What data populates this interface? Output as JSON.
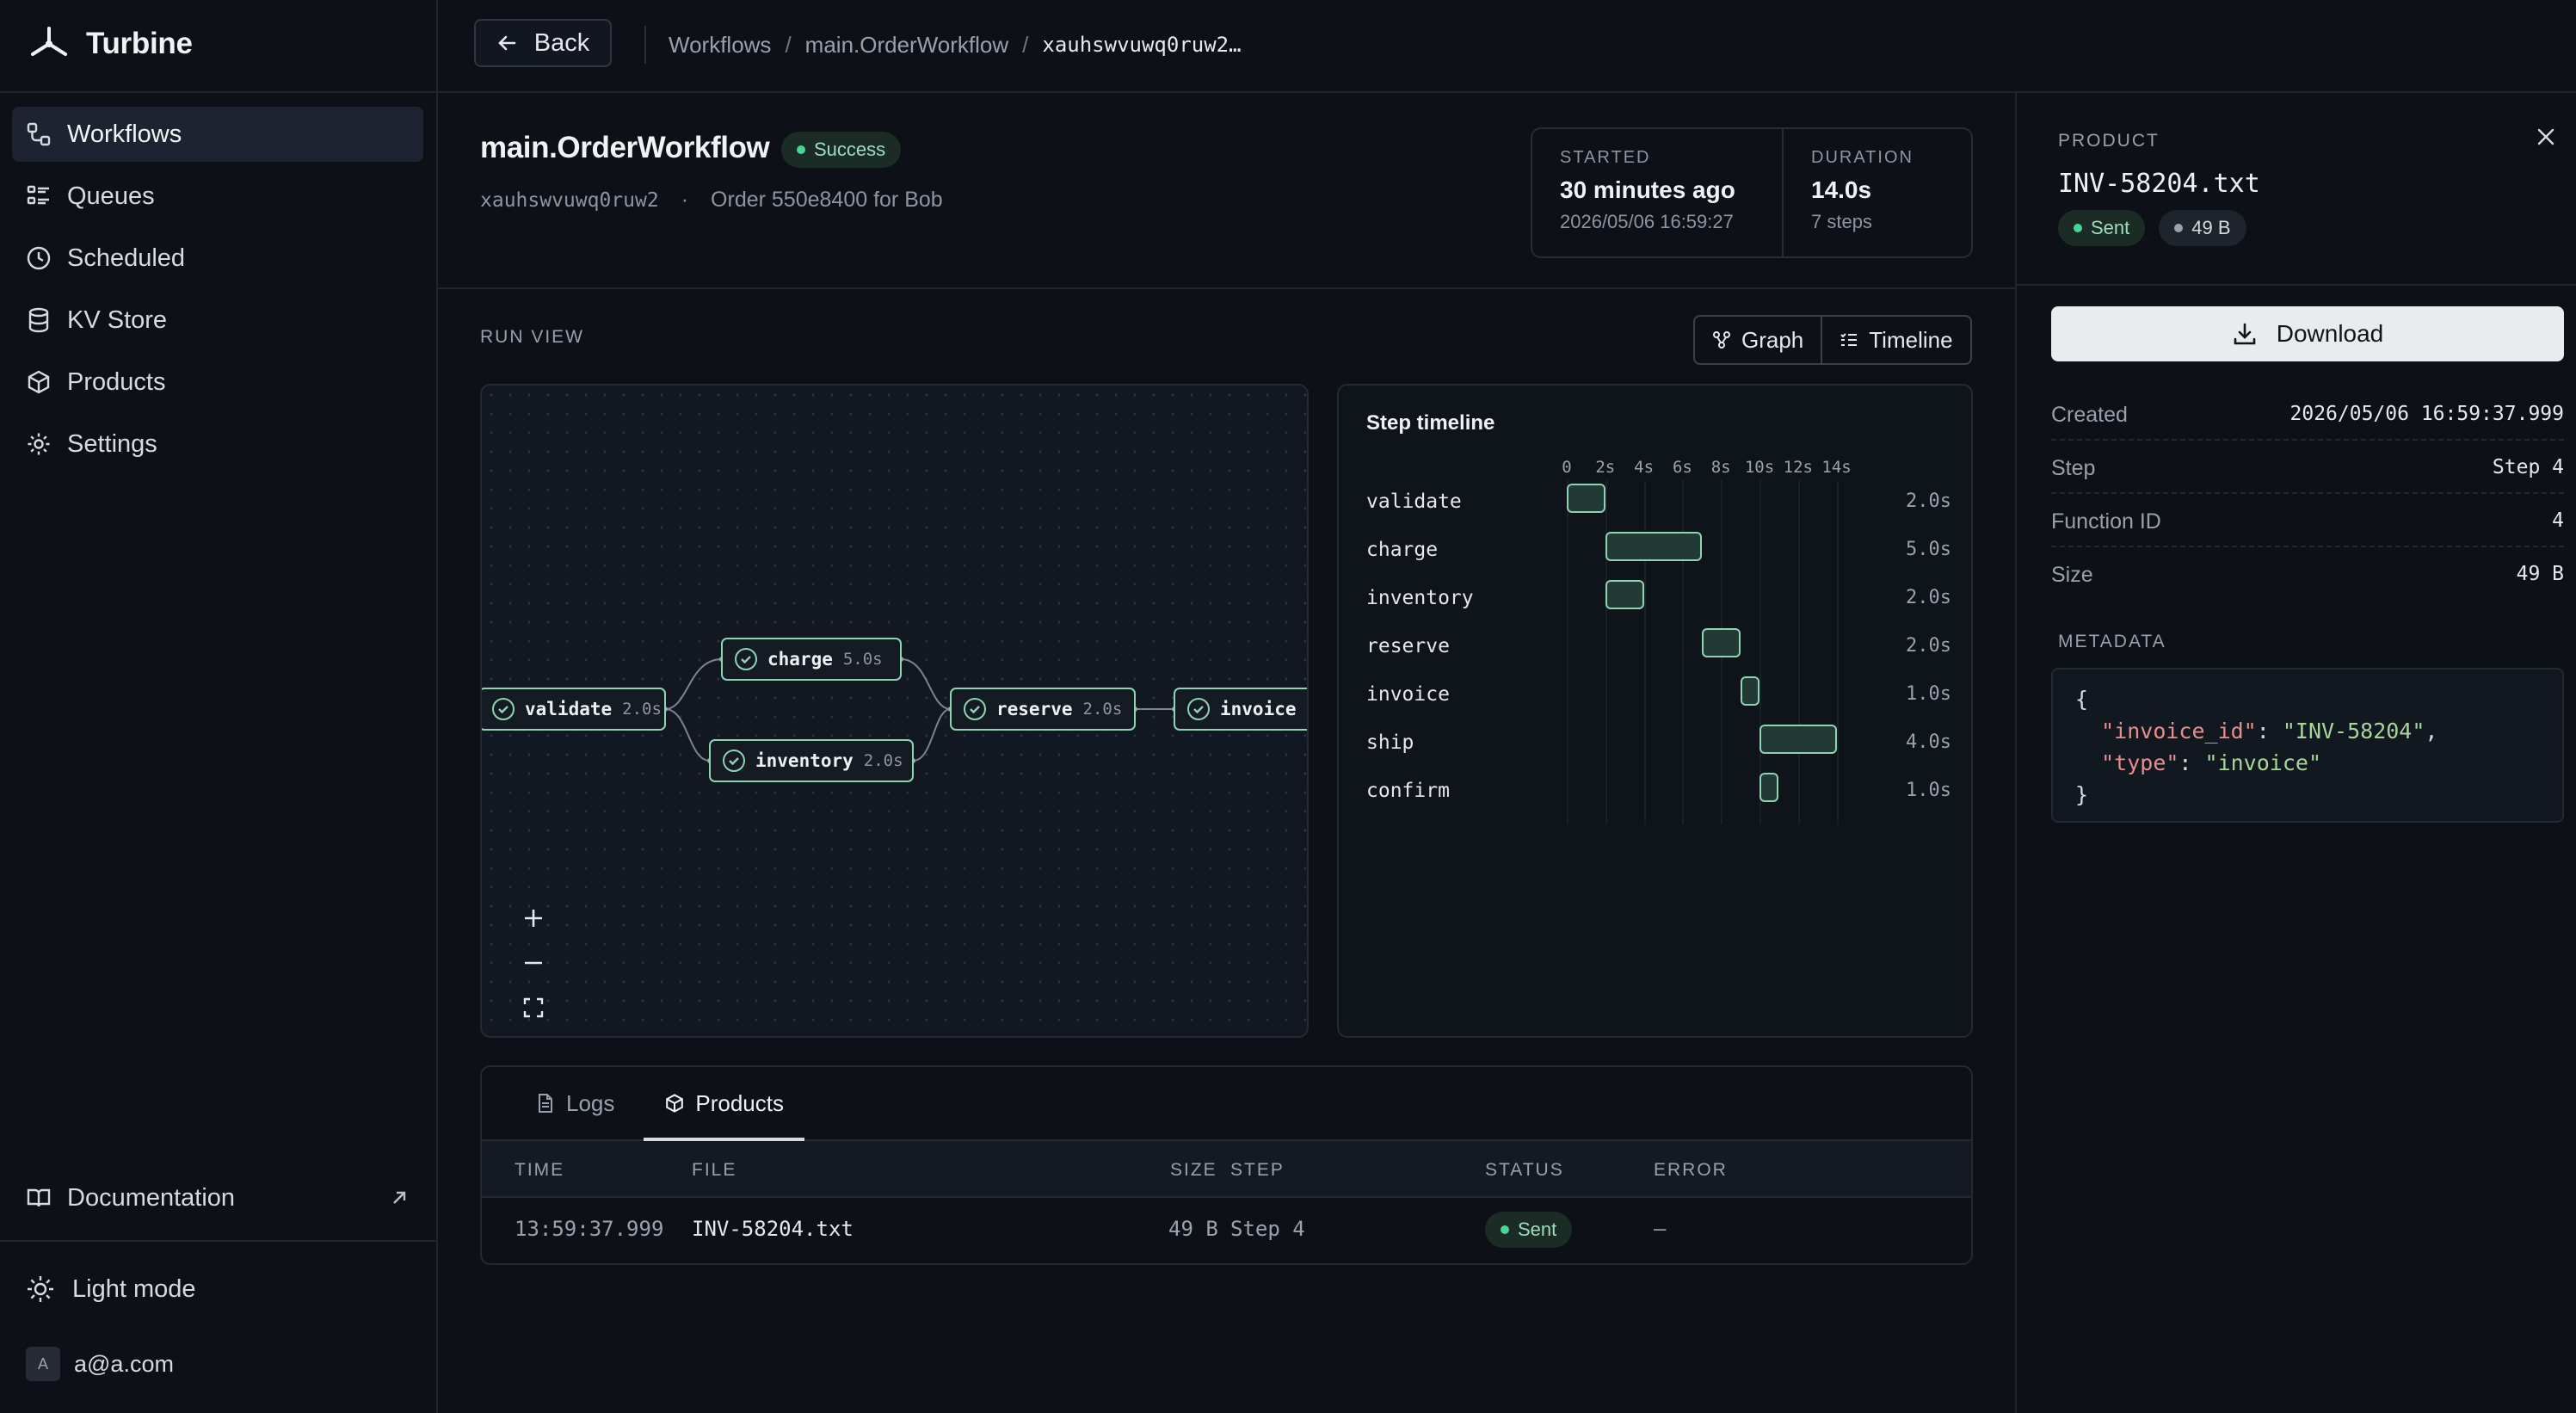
{
  "app": {
    "name": "Turbine"
  },
  "sidebar": {
    "items": [
      {
        "label": "Workflows",
        "icon": "workflow-icon",
        "active": true
      },
      {
        "label": "Queues",
        "icon": "queue-list-icon"
      },
      {
        "label": "Scheduled",
        "icon": "clock-icon"
      },
      {
        "label": "KV Store",
        "icon": "database-icon"
      },
      {
        "label": "Products",
        "icon": "package-icon"
      },
      {
        "label": "Settings",
        "icon": "gear-icon"
      }
    ],
    "documentation": "Documentation",
    "light_mode": "Light mode",
    "user": {
      "avatar_letter": "A",
      "email": "a@a.com"
    }
  },
  "topbar": {
    "back_label": "Back",
    "breadcrumb": [
      "Workflows",
      "main.OrderWorkflow",
      "xauhswvuwq0ruw2…"
    ]
  },
  "workflow": {
    "title": "main.OrderWorkflow",
    "status": "Success",
    "id": "xauhswvuwq0ruw2",
    "description": "Order 550e8400 for Bob",
    "started_label": "STARTED",
    "started_value": "30 minutes ago",
    "started_time": "2026/05/06 16:59:27",
    "duration_label": "DURATION",
    "duration_value": "14.0s",
    "duration_steps": "7 steps"
  },
  "run_view": {
    "label": "RUN VIEW",
    "graph_label": "Graph",
    "timeline_label": "Timeline"
  },
  "graph": {
    "nodes": [
      {
        "name": "validate",
        "duration": "2.0s"
      },
      {
        "name": "charge",
        "duration": "5.0s"
      },
      {
        "name": "inventory",
        "duration": "2.0s"
      },
      {
        "name": "reserve",
        "duration": "2.0s"
      },
      {
        "name": "invoice",
        "duration": ""
      }
    ]
  },
  "timeline": {
    "title": "Step timeline",
    "ticks": [
      "0",
      "2s",
      "4s",
      "6s",
      "8s",
      "10s",
      "12s",
      "14s"
    ],
    "steps": [
      {
        "name": "validate",
        "start": 0,
        "duration": 2.0,
        "label": "2.0s"
      },
      {
        "name": "charge",
        "start": 2,
        "duration": 5.0,
        "label": "5.0s"
      },
      {
        "name": "inventory",
        "start": 2,
        "duration": 2.0,
        "label": "2.0s"
      },
      {
        "name": "reserve",
        "start": 7,
        "duration": 2.0,
        "label": "2.0s"
      },
      {
        "name": "invoice",
        "start": 9,
        "duration": 1.0,
        "label": "1.0s"
      },
      {
        "name": "ship",
        "start": 10,
        "duration": 4.0,
        "label": "4.0s"
      },
      {
        "name": "confirm",
        "start": 10,
        "duration": 1.0,
        "label": "1.0s"
      }
    ]
  },
  "bottom": {
    "tabs": [
      "Logs",
      "Products"
    ],
    "columns": [
      "TIME",
      "FILE",
      "SIZE",
      "STEP",
      "STATUS",
      "ERROR"
    ],
    "rows": [
      {
        "time": "13:59:37.999",
        "file": "INV-58204.txt",
        "size": "49 B",
        "step": "Step 4",
        "status": "Sent",
        "error": "—"
      }
    ]
  },
  "product": {
    "section_label": "PRODUCT",
    "file": "INV-58204.txt",
    "status": "Sent",
    "size_badge": "49 B",
    "download_label": "Download",
    "fields": [
      {
        "key": "Created",
        "value": "2026/05/06 16:59:37.999"
      },
      {
        "key": "Step",
        "value": "Step 4"
      },
      {
        "key": "Function ID",
        "value": "4"
      },
      {
        "key": "Size",
        "value": "49 B"
      }
    ],
    "metadata_label": "METADATA",
    "metadata": {
      "invoice_id": "INV-58204",
      "type": "invoice"
    }
  },
  "colors": {
    "accent": "#8fd3b4",
    "success": "#4bd39a",
    "background": "#0d1117"
  }
}
